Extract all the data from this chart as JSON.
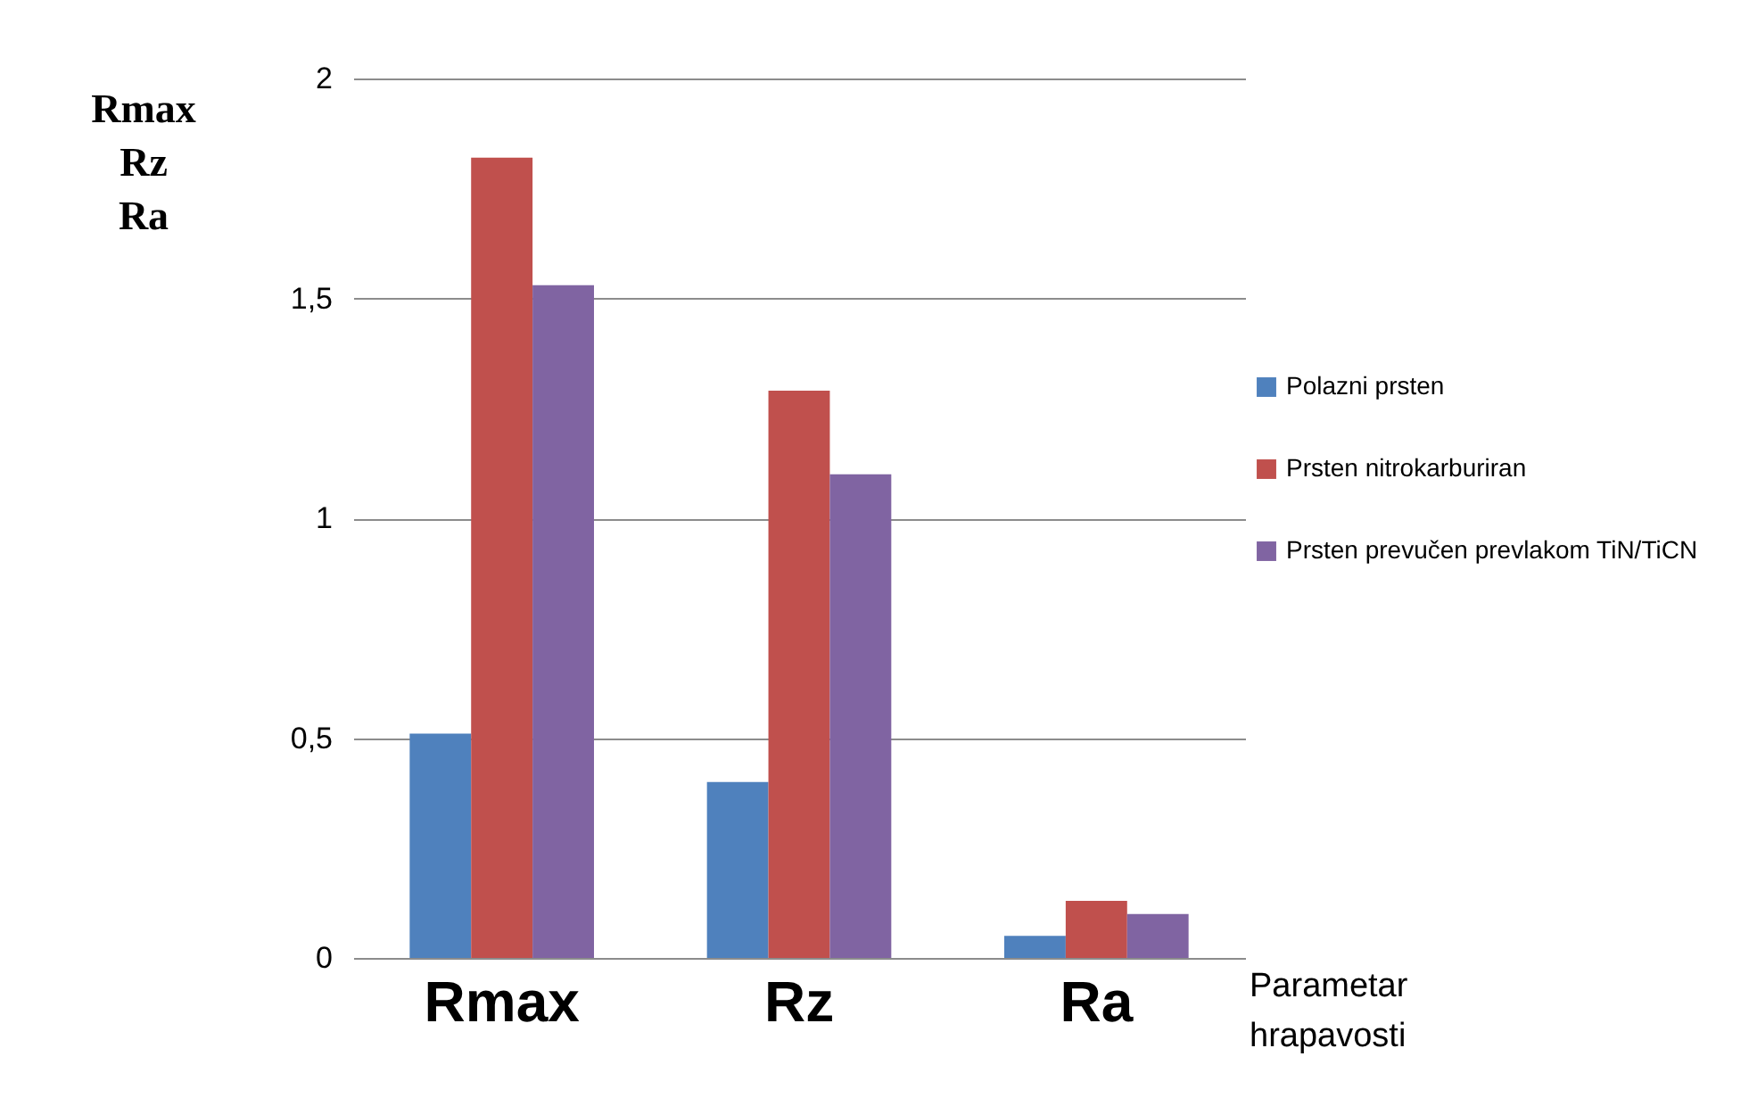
{
  "chart_data": {
    "type": "bar",
    "ylabel": "Rmax\nRz\nRa",
    "xlabel": "Parametar\nhrapavosti",
    "categories": [
      "Rmax",
      "Rz",
      "Ra"
    ],
    "series": [
      {
        "name": "Polazni prsten",
        "color": "#4f81bd",
        "values": [
          0.51,
          0.4,
          0.05
        ]
      },
      {
        "name": "Prsten nitrokarburiran",
        "color": "#c0504d",
        "values": [
          1.82,
          1.29,
          0.13
        ]
      },
      {
        "name": "Prsten prevučen prevlakom TiN/TiCN",
        "color": "#8064a2",
        "values": [
          1.53,
          1.1,
          0.1
        ]
      }
    ],
    "ylim": [
      0,
      2
    ],
    "yticks": [
      0,
      {
        "value": 0.5,
        "label": "0,5"
      },
      1,
      {
        "value": 1.5,
        "label": "1,5"
      },
      2
    ],
    "grid": "y",
    "legend": "right"
  }
}
